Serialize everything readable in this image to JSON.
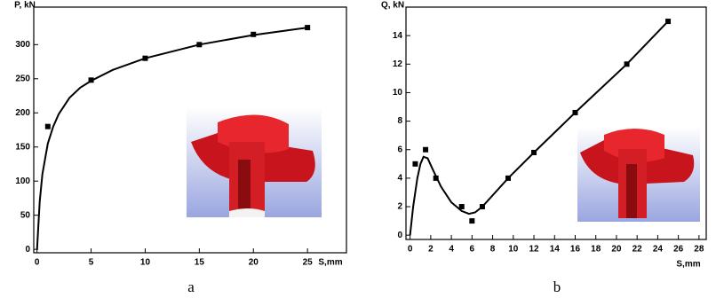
{
  "chart_data": [
    {
      "type": "scatter",
      "y_label": "P, kN",
      "x_label": "S,mm",
      "caption": "a",
      "xlim": [
        -0.3,
        28.6
      ],
      "ylim": [
        -5,
        355
      ],
      "xticks": [
        0,
        5,
        10,
        15,
        20,
        25
      ],
      "yticks": [
        0,
        50,
        100,
        150,
        200,
        250,
        300
      ],
      "series": [
        {
          "mode": "markers",
          "color": "#000000",
          "x": [
            1,
            5,
            10,
            15,
            20,
            25
          ],
          "values": [
            180,
            248,
            280,
            300,
            315,
            325
          ]
        },
        {
          "mode": "line",
          "color": "#000000",
          "x": [
            0,
            0.25,
            0.5,
            1,
            1.5,
            2,
            3,
            4,
            5,
            7,
            10,
            15,
            20,
            25
          ],
          "values": [
            0,
            70,
            110,
            155,
            180,
            198,
            222,
            237,
            247,
            263,
            280,
            300,
            314,
            325
          ]
        }
      ]
    },
    {
      "type": "scatter",
      "y_label": "Q, kN",
      "x_label": "S,mm",
      "caption": "b",
      "xlim": [
        -0.4,
        28.7
      ],
      "ylim": [
        -0.3,
        16
      ],
      "xticks": [
        0,
        2,
        4,
        6,
        8,
        10,
        12,
        14,
        16,
        18,
        20,
        22,
        24,
        26,
        28
      ],
      "yticks": [
        0,
        2,
        4,
        6,
        8,
        10,
        12,
        14
      ],
      "series": [
        {
          "mode": "markers",
          "color": "#000000",
          "x": [
            0.5,
            1.5,
            2.5,
            5,
            6,
            7,
            9.5,
            12,
            16,
            21,
            25
          ],
          "values": [
            5,
            6,
            4,
            2,
            1,
            2,
            4,
            5.8,
            8.6,
            12,
            15
          ]
        },
        {
          "mode": "line",
          "color": "#000000",
          "x": [
            0,
            0.3,
            0.7,
            1,
            1.3,
            1.7,
            2.2,
            3,
            4,
            5,
            5.7,
            6.3,
            7,
            9.5,
            12,
            16,
            21,
            25
          ],
          "values": [
            0,
            2,
            4,
            5,
            5.5,
            5.4,
            4.6,
            3.4,
            2.3,
            1.7,
            1.5,
            1.6,
            2,
            4,
            5.8,
            8.6,
            12,
            15
          ]
        }
      ]
    }
  ]
}
